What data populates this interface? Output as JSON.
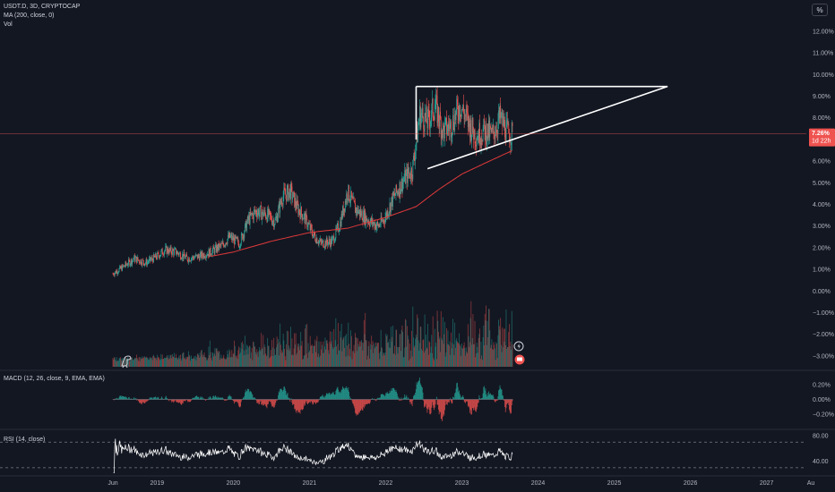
{
  "header": {
    "symbol_line": "USDT.D, 3D, CRYPTOCAP",
    "ma_line": "MA (200, close, 0)",
    "vol_line": "Vol",
    "scale_button": "%"
  },
  "macd_panel": {
    "label": "MACD (12, 26, close, 9, EMA, EMA)"
  },
  "rsi_panel": {
    "label": "RSI (14, close)"
  },
  "price_tag": {
    "value": "7.26%",
    "countdown": "1d 22h"
  },
  "colors": {
    "background": "#131722",
    "up": "#26a69a",
    "down": "#ef5350",
    "ma": "#e03a3a",
    "drawing": "#ffffff",
    "rsi": "#ffffff",
    "grid_text": "#b2b5be"
  },
  "icons": [
    "dino-icon",
    "lightning-icon",
    "flag-icon"
  ],
  "chart_data": {
    "type": "candlestick",
    "price_axis": {
      "ticks": [
        "12.00%",
        "11.00%",
        "10.00%",
        "9.00%",
        "8.00%",
        "7.00%",
        "6.00%",
        "5.00%",
        "4.00%",
        "3.00%",
        "2.00%",
        "1.00%",
        "0.00%",
        "−1.00%",
        "−2.00%",
        "−3.00%"
      ],
      "range": [
        -3.5,
        12.7
      ]
    },
    "macd_axis": {
      "ticks": [
        "0.20%",
        "0.00%",
        "−0.20%"
      ],
      "range": [
        -0.35,
        0.35
      ]
    },
    "rsi_axis": {
      "ticks": [
        "80.00",
        "40.00"
      ],
      "range": [
        20,
        90
      ],
      "bands": [
        70,
        30
      ]
    },
    "time_axis": {
      "labels": [
        "Jun",
        "2019",
        "2020",
        "2021",
        "2022",
        "2023",
        "2024",
        "2025",
        "2026",
        "2027",
        "Au"
      ],
      "positions": [
        2018.42,
        2019.0,
        2020.0,
        2021.0,
        2022.0,
        2023.0,
        2024.0,
        2025.0,
        2026.0,
        2027.0,
        2027.58
      ],
      "range": [
        2018.42,
        2027.58
      ]
    },
    "series_start": 2018.42,
    "series_end": 2023.67,
    "price_anchors": [
      [
        2018.42,
        0.8
      ],
      [
        2018.55,
        1.1
      ],
      [
        2018.7,
        1.5
      ],
      [
        2018.85,
        1.3
      ],
      [
        2019.0,
        1.6
      ],
      [
        2019.1,
        1.9
      ],
      [
        2019.25,
        1.8
      ],
      [
        2019.4,
        1.5
      ],
      [
        2019.55,
        1.6
      ],
      [
        2019.7,
        1.8
      ],
      [
        2019.85,
        2.1
      ],
      [
        2019.95,
        2.5
      ],
      [
        2020.08,
        2.2
      ],
      [
        2020.2,
        3.3
      ],
      [
        2020.3,
        3.7
      ],
      [
        2020.45,
        3.5
      ],
      [
        2020.55,
        3.2
      ],
      [
        2020.65,
        4.4
      ],
      [
        2020.75,
        4.6
      ],
      [
        2020.85,
        3.8
      ],
      [
        2020.95,
        3.3
      ],
      [
        2021.05,
        2.6
      ],
      [
        2021.15,
        2.2
      ],
      [
        2021.3,
        2.3
      ],
      [
        2021.4,
        3.1
      ],
      [
        2021.5,
        4.6
      ],
      [
        2021.6,
        3.8
      ],
      [
        2021.7,
        3.5
      ],
      [
        2021.8,
        3.2
      ],
      [
        2021.9,
        3.0
      ],
      [
        2021.98,
        3.3
      ],
      [
        2022.1,
        4.3
      ],
      [
        2022.25,
        5.2
      ],
      [
        2022.35,
        5.6
      ],
      [
        2022.45,
        8.2
      ],
      [
        2022.55,
        7.8
      ],
      [
        2022.65,
        8.6
      ],
      [
        2022.75,
        7.4
      ],
      [
        2022.85,
        7.6
      ],
      [
        2022.98,
        8.6
      ],
      [
        2023.08,
        7.8
      ],
      [
        2023.18,
        7.2
      ],
      [
        2023.3,
        7.4
      ],
      [
        2023.4,
        7.2
      ],
      [
        2023.5,
        8.0
      ],
      [
        2023.6,
        7.3
      ],
      [
        2023.67,
        7.26
      ]
    ],
    "ma_anchors": [
      [
        2019.7,
        1.6
      ],
      [
        2020.0,
        1.8
      ],
      [
        2020.5,
        2.3
      ],
      [
        2021.0,
        2.7
      ],
      [
        2021.5,
        2.9
      ],
      [
        2022.0,
        3.4
      ],
      [
        2022.4,
        3.9
      ],
      [
        2022.7,
        4.7
      ],
      [
        2023.0,
        5.4
      ],
      [
        2023.3,
        5.9
      ],
      [
        2023.67,
        6.5
      ]
    ],
    "trendlines": [
      {
        "from": [
          2022.4,
          9.45
        ],
        "to": [
          2025.7,
          9.45
        ]
      },
      {
        "from": [
          2022.55,
          5.65
        ],
        "to": [
          2025.7,
          9.45
        ]
      },
      {
        "from": [
          2022.4,
          9.45
        ],
        "to": [
          2022.4,
          7.0
        ]
      }
    ],
    "last_value": 7.26
  }
}
